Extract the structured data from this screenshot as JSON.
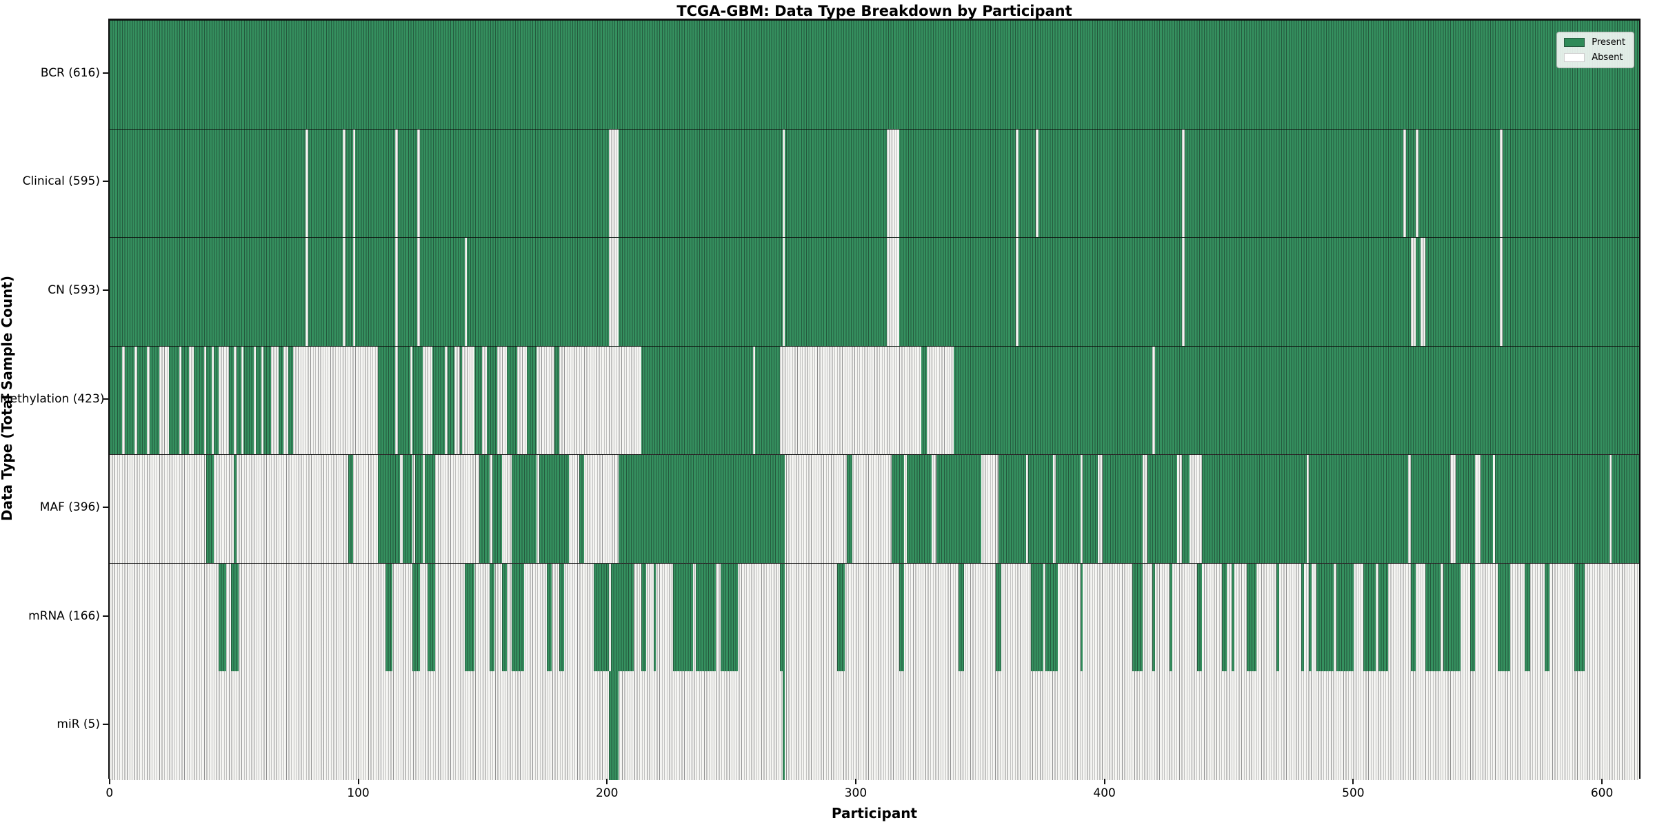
{
  "title": "TCGA-GBM: Data Type Breakdown by Participant",
  "xlabel": "Participant",
  "ylabel": "Data Type (Total Sample Count)",
  "legend": {
    "present_label": "Present",
    "absent_label": "Absent",
    "present_color": "#2f8a58",
    "absent_color": "#ffffff"
  },
  "x_ticks": [
    0,
    100,
    200,
    300,
    400,
    500,
    600
  ],
  "n_participants": 616,
  "chart_data": {
    "type": "heatmap",
    "x_range": [
      0,
      616
    ],
    "x_axis": "Participant index",
    "legend_position": "upper right",
    "categories": [
      "BCR (616)",
      "Clinical (595)",
      "CN (593)",
      "Methylation (423)",
      "MAF (396)",
      "mRNA (166)",
      "miR (5)"
    ],
    "rows": [
      {
        "name": "BCR",
        "total": 616,
        "display": "BCR (616)",
        "base": "present",
        "exception": "absent",
        "ranges": []
      },
      {
        "name": "Clinical",
        "total": 595,
        "display": "Clinical (595)",
        "base": "present",
        "exception": "absent",
        "ranges": [
          [
            79,
            80
          ],
          [
            94,
            95
          ],
          [
            98,
            99
          ],
          [
            115,
            116
          ],
          [
            124,
            125
          ],
          [
            201,
            205
          ],
          [
            271,
            272
          ],
          [
            313,
            318
          ],
          [
            365,
            366
          ],
          [
            373,
            374
          ],
          [
            432,
            433
          ],
          [
            521,
            522
          ],
          [
            526,
            527
          ],
          [
            560,
            561
          ]
        ]
      },
      {
        "name": "CN",
        "total": 593,
        "display": "CN (593)",
        "base": "present",
        "exception": "absent",
        "ranges": [
          [
            79,
            80
          ],
          [
            94,
            95
          ],
          [
            98,
            99
          ],
          [
            115,
            116
          ],
          [
            124,
            125
          ],
          [
            143,
            144
          ],
          [
            201,
            205
          ],
          [
            271,
            272
          ],
          [
            313,
            318
          ],
          [
            365,
            366
          ],
          [
            432,
            433
          ],
          [
            524,
            526
          ],
          [
            528,
            530
          ],
          [
            560,
            561
          ]
        ]
      },
      {
        "name": "Methylation",
        "total": 423,
        "display": "Methylation (423)",
        "base": "present",
        "exception": "absent",
        "ranges": [
          [
            5,
            6
          ],
          [
            10,
            11
          ],
          [
            15,
            16
          ],
          [
            20,
            24
          ],
          [
            28,
            29
          ],
          [
            32,
            34
          ],
          [
            38,
            39
          ],
          [
            41,
            42
          ],
          [
            44,
            48
          ],
          [
            50,
            51
          ],
          [
            53,
            54
          ],
          [
            58,
            59
          ],
          [
            61,
            62
          ],
          [
            65,
            68
          ],
          [
            70,
            72
          ],
          [
            74,
            108
          ],
          [
            115,
            116
          ],
          [
            121,
            122
          ],
          [
            126,
            130
          ],
          [
            135,
            136
          ],
          [
            139,
            141
          ],
          [
            142,
            147
          ],
          [
            150,
            152
          ],
          [
            156,
            160
          ],
          [
            164,
            168
          ],
          [
            172,
            179
          ],
          [
            181,
            214
          ],
          [
            259,
            260
          ],
          [
            270,
            327
          ],
          [
            329,
            340
          ],
          [
            420,
            421
          ]
        ]
      },
      {
        "name": "MAF",
        "total": 396,
        "display": "MAF (396)",
        "base": "absent",
        "exception": "present",
        "ranges": [
          [
            39,
            42
          ],
          [
            50,
            51
          ],
          [
            96,
            98
          ],
          [
            108,
            117
          ],
          [
            118,
            122
          ],
          [
            123,
            126
          ],
          [
            127,
            131
          ],
          [
            149,
            153
          ],
          [
            154,
            158
          ],
          [
            162,
            172
          ],
          [
            173,
            185
          ],
          [
            189,
            191
          ],
          [
            205,
            272
          ],
          [
            297,
            299
          ],
          [
            315,
            320
          ],
          [
            321,
            331
          ],
          [
            333,
            351
          ],
          [
            358,
            369
          ],
          [
            370,
            380
          ],
          [
            381,
            391
          ],
          [
            392,
            398
          ],
          [
            400,
            416
          ],
          [
            418,
            430
          ],
          [
            432,
            435
          ],
          [
            440,
            482
          ],
          [
            483,
            523
          ],
          [
            524,
            540
          ],
          [
            542,
            550
          ],
          [
            552,
            557
          ],
          [
            558,
            604
          ],
          [
            605,
            616
          ]
        ]
      },
      {
        "name": "mRNA",
        "total": 166,
        "display": "mRNA (166)",
        "base": "absent",
        "exception": "present",
        "ranges": [
          [
            44,
            47
          ],
          [
            49,
            52
          ],
          [
            111,
            114
          ],
          [
            122,
            125
          ],
          [
            128,
            131
          ],
          [
            143,
            147
          ],
          [
            153,
            155
          ],
          [
            158,
            160
          ],
          [
            162,
            167
          ],
          [
            176,
            178
          ],
          [
            181,
            183
          ],
          [
            195,
            201
          ],
          [
            202,
            211
          ],
          [
            214,
            216
          ],
          [
            219,
            220
          ],
          [
            227,
            235
          ],
          [
            236,
            244
          ],
          [
            246,
            253
          ],
          [
            270,
            272
          ],
          [
            293,
            296
          ],
          [
            318,
            320
          ],
          [
            342,
            344
          ],
          [
            357,
            359
          ],
          [
            371,
            376
          ],
          [
            377,
            382
          ],
          [
            391,
            392
          ],
          [
            412,
            416
          ],
          [
            420,
            421
          ],
          [
            427,
            428
          ],
          [
            438,
            440
          ],
          [
            448,
            450
          ],
          [
            452,
            453
          ],
          [
            458,
            462
          ],
          [
            470,
            471
          ],
          [
            480,
            481
          ],
          [
            483,
            484
          ],
          [
            486,
            493
          ],
          [
            494,
            501
          ],
          [
            505,
            510
          ],
          [
            511,
            515
          ],
          [
            524,
            526
          ],
          [
            530,
            536
          ],
          [
            537,
            544
          ],
          [
            548,
            550
          ],
          [
            559,
            564
          ],
          [
            570,
            572
          ],
          [
            578,
            580
          ],
          [
            590,
            594
          ]
        ]
      },
      {
        "name": "miR",
        "total": 5,
        "display": "miR (5)",
        "base": "absent",
        "exception": "present",
        "ranges": [
          [
            201,
            205
          ],
          [
            271,
            272
          ]
        ]
      }
    ]
  }
}
